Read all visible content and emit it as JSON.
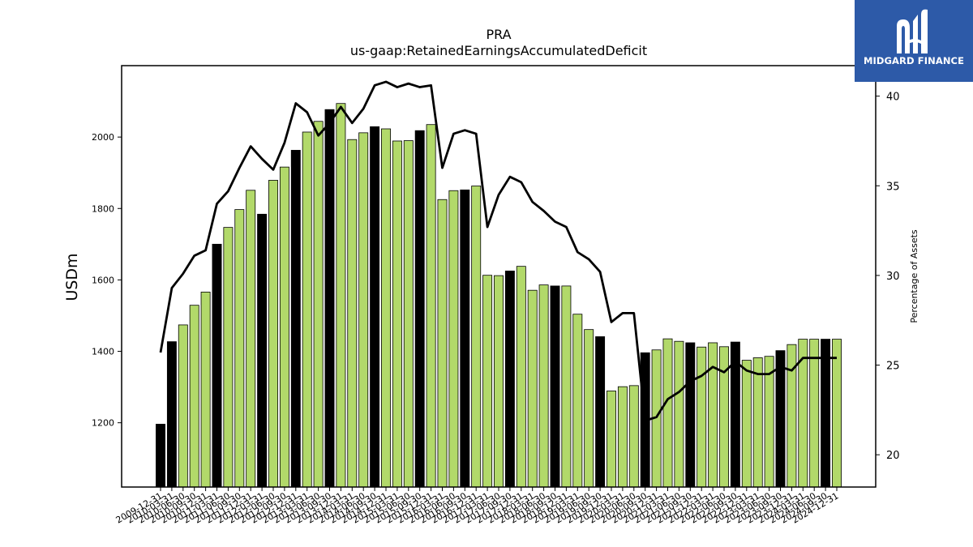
{
  "logo": {
    "text": "MIDGARD FINANCE",
    "color": "#2d5aa8"
  },
  "colors": {
    "bar_normal": "#b2d96a",
    "bar_highlight": "#000000",
    "line": "#000000"
  },
  "chart_data": {
    "type": "bar",
    "title": "PRA",
    "subtitle": "us-gaap:RetainedEarningsAccumulatedDeficit",
    "ylabel": "USDm",
    "y2label": "Percentage of Assets",
    "ylim": [
      1020,
      2200
    ],
    "y2lim": [
      18.2,
      41.7
    ],
    "yticks": [
      1200,
      1400,
      1600,
      1800,
      2000
    ],
    "y2ticks": [
      20,
      25,
      30,
      35,
      40
    ],
    "grid": false,
    "categories": [
      "2009-12-31",
      "2010-03-31",
      "2010-06-30",
      "2010-09-30",
      "2010-12-31",
      "2011-03-31",
      "2011-06-30",
      "2011-09-30",
      "2011-12-31",
      "2012-03-31",
      "2012-06-30",
      "2012-09-30",
      "2012-12-31",
      "2013-03-31",
      "2013-06-30",
      "2013-09-30",
      "2013-12-31",
      "2014-03-31",
      "2014-06-30",
      "2014-09-30",
      "2014-12-31",
      "2015-03-31",
      "2015-06-30",
      "2015-09-30",
      "2015-12-31",
      "2016-03-31",
      "2016-06-30",
      "2016-09-30",
      "2016-12-31",
      "2017-03-31",
      "2017-06-30",
      "2017-09-30",
      "2017-12-31",
      "2018-03-31",
      "2018-06-30",
      "2018-09-30",
      "2018-12-31",
      "2019-03-31",
      "2019-06-30",
      "2019-09-30",
      "2019-12-31",
      "2020-03-31",
      "2020-06-30",
      "2020-09-30",
      "2020-12-31",
      "2021-03-31",
      "2021-06-30",
      "2021-09-30",
      "2021-12-31",
      "2022-03-31",
      "2022-06-30",
      "2022-09-30",
      "2022-12-31",
      "2023-03-31",
      "2023-06-30",
      "2023-09-30",
      "2023-12-31",
      "2024-03-31",
      "2024-06-30",
      "2024-09-30",
      "2024-12-31"
    ],
    "tick_labels": [
      "2009-12-31",
      "2010-03-31",
      "2010-06-30",
      "2010-09-30",
      "2010-12-31",
      "2011-03-31",
      "2011-06-30",
      "2011-09-30",
      "2011-12-31",
      "2012-03-31",
      "2012-06-30",
      "2012-09-30",
      "2012-12-31",
      "2013-03-31",
      "2013-06-30",
      "2013-09-30",
      "2013-12-31",
      "2014-03-31",
      "2014-06-30",
      "2014-09-30",
      "2014-12-31",
      "2015-03-31",
      "2015-06-30",
      "2015-09-30",
      "2015-12-31",
      "2016-03-31",
      "2016-06-30",
      "2016-09-30",
      "2016-12-31",
      "2017-03-31",
      "2017-06-30",
      "2017-09-30",
      "2017-12-31",
      "2018-03-31",
      "2018-06-30",
      "2018-09-30",
      "2018-12-31",
      "2019-03-31",
      "2019-06-30",
      "2019-09-30",
      "2019-12-31",
      "2020-03-31",
      "2020-06-30",
      "2020-09-30",
      "2020-12-31",
      "2021-03-31",
      "2021-06-30",
      "2021-09-30",
      "2021-12-31",
      "2022-03-31",
      "2022-06-30",
      "2022-09-30",
      "2022-12-31",
      "2023-03-31",
      "2023-06-30",
      "2023-09-30",
      "2023-12-31",
      "2024-03-31",
      "2024-06-30",
      "2024-09-30",
      "2024-12-31"
    ],
    "highlight": [
      true,
      true,
      false,
      false,
      false,
      true,
      false,
      false,
      false,
      true,
      false,
      false,
      true,
      false,
      false,
      true,
      false,
      false,
      false,
      true,
      false,
      false,
      false,
      true,
      false,
      false,
      false,
      true,
      false,
      false,
      false,
      true,
      false,
      false,
      false,
      true,
      false,
      false,
      false,
      true,
      false,
      false,
      false,
      true,
      false,
      false,
      false,
      true,
      false,
      false,
      false,
      true,
      false,
      false,
      false,
      true,
      false,
      false,
      false,
      true,
      false
    ],
    "series": [
      {
        "type": "bar",
        "axis": "left",
        "values": [
          1196,
          1427,
          1474,
          1529,
          1566,
          1700,
          1747,
          1797,
          1851,
          1784,
          1879,
          1916,
          1963,
          2014,
          2044,
          2077,
          2094,
          1993,
          2012,
          2029,
          2023,
          1989,
          1990,
          2018,
          2035,
          1825,
          1850,
          1852,
          1863,
          1613,
          1612,
          1625,
          1638,
          1571,
          1586,
          1583,
          1583,
          1504,
          1461,
          1441,
          1289,
          1301,
          1304,
          1396,
          1404,
          1435,
          1428,
          1424,
          1412,
          1424,
          1413,
          1426,
          1375,
          1382,
          1386,
          1402,
          1419,
          1434,
          1434,
          1434,
          1434
        ]
      },
      {
        "type": "line",
        "axis": "right",
        "values": [
          25.7,
          29.3,
          30.1,
          31.1,
          31.4,
          34.0,
          34.7,
          36.0,
          37.2,
          36.5,
          35.9,
          37.4,
          39.6,
          39.1,
          37.8,
          38.5,
          39.4,
          38.5,
          39.3,
          40.6,
          40.8,
          40.5,
          40.7,
          40.5,
          40.6,
          36.0,
          37.9,
          38.1,
          37.9,
          32.7,
          34.5,
          35.5,
          35.2,
          34.1,
          33.6,
          33.0,
          32.7,
          31.3,
          30.9,
          30.2,
          27.4,
          27.9,
          27.9,
          21.9,
          22.1,
          23.1,
          23.5,
          24.1,
          24.4,
          24.9,
          24.6,
          25.2,
          24.7,
          24.5,
          24.5,
          24.9,
          24.7,
          25.4,
          25.4,
          25.4,
          25.4
        ]
      }
    ]
  }
}
